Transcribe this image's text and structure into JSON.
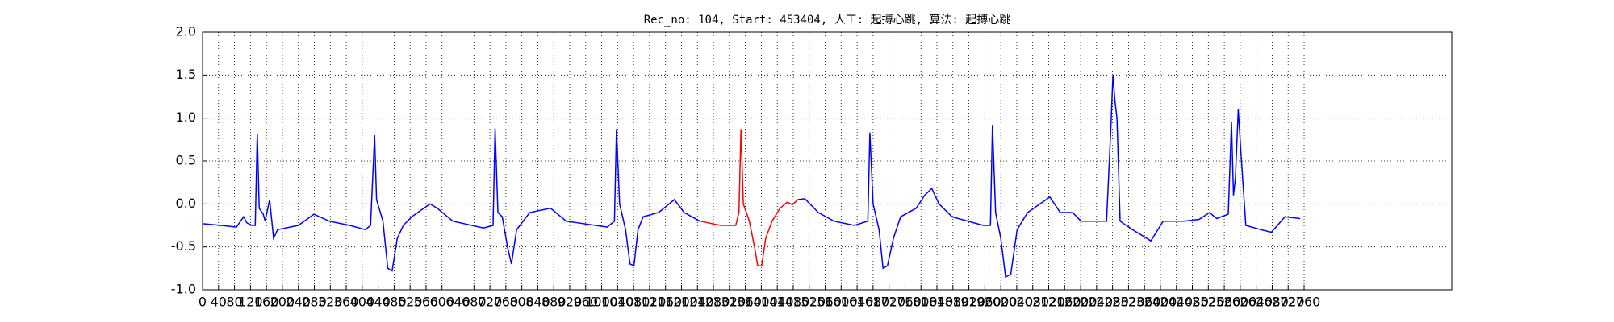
{
  "chart_data": {
    "type": "line",
    "title": "Rec_no: 104, Start: 453404, 人工: 起搏心跳, 算法: 起搏心跳",
    "x": [
      0,
      46,
      85,
      103,
      111,
      124,
      132,
      137,
      142,
      152,
      157,
      168,
      178,
      188,
      240,
      279,
      317,
      369,
      408,
      421,
      431,
      436,
      452,
      464,
      475,
      488,
      503,
      524,
      570,
      588,
      627,
      704,
      728,
      733,
      740,
      751,
      764,
      774,
      787,
      820,
      872,
      911,
      1014,
      1032,
      1037,
      1045,
      1060,
      1071,
      1081,
      1091,
      1104,
      1143,
      1182,
      1207,
      1246,
      1298,
      1336,
      1344,
      1349,
      1355,
      1370,
      1383,
      1391,
      1401,
      1411,
      1427,
      1447,
      1465,
      1478,
      1491,
      1509,
      1543,
      1582,
      1633,
      1667,
      1672,
      1680,
      1695,
      1705,
      1716,
      1731,
      1749,
      1788,
      1809,
      1827,
      1845,
      1878,
      1956,
      1974,
      1979,
      1987,
      2000,
      2012,
      2025,
      2041,
      2067,
      2123,
      2149,
      2180,
      2201,
      2265,
      2276,
      2281,
      2286,
      2291,
      2299,
      2330,
      2376,
      2407,
      2459,
      2497,
      2523,
      2541,
      2570,
      2578,
      2583,
      2588,
      2595,
      2603,
      2614,
      2652,
      2678,
      2712,
      2750
    ],
    "series": [
      {
        "color": "#0000ff",
        "values": [
          -0.23,
          -0.25,
          -0.27,
          -0.15,
          -0.22,
          -0.25,
          -0.25,
          0.82,
          -0.05,
          -0.12,
          -0.2,
          0.05,
          -0.4,
          -0.3,
          -0.25,
          -0.12,
          -0.2,
          -0.25,
          -0.3,
          -0.25,
          0.8,
          0.05,
          -0.2,
          -0.75,
          -0.78,
          -0.4,
          -0.25,
          -0.15,
          0.0,
          -0.05,
          -0.2,
          -0.28,
          -0.25,
          0.88,
          -0.1,
          -0.15,
          -0.5,
          -0.7,
          -0.3,
          -0.1,
          -0.05,
          -0.2,
          -0.27,
          -0.2,
          0.87,
          0.0,
          -0.3,
          -0.7,
          -0.72,
          -0.3,
          -0.15,
          -0.1,
          0.05,
          -0.1,
          -0.2,
          null,
          null,
          null,
          null,
          null,
          null,
          null,
          null,
          null,
          null,
          null,
          null,
          null,
          null,
          0.05,
          0.06,
          -0.1,
          -0.2,
          -0.25,
          -0.2,
          0.83,
          0.0,
          -0.3,
          -0.75,
          -0.72,
          -0.4,
          -0.15,
          -0.05,
          0.1,
          0.18,
          0.0,
          -0.15,
          -0.25,
          -0.25,
          0.92,
          -0.1,
          -0.4,
          -0.85,
          -0.82,
          -0.3,
          -0.1,
          0.08,
          -0.1,
          -0.1,
          -0.2,
          -0.2,
          0.9,
          1.5,
          1.2,
          1.0,
          -0.2,
          -0.3,
          -0.43,
          -0.2,
          -0.2,
          -0.18,
          -0.1,
          -0.17,
          -0.12,
          0.95,
          0.1,
          0.3,
          1.1,
          0.5,
          -0.25,
          -0.3,
          -0.33,
          -0.15,
          -0.17
        ]
      },
      {
        "color": "#ff0000",
        "values": [
          null,
          null,
          null,
          null,
          null,
          null,
          null,
          null,
          null,
          null,
          null,
          null,
          null,
          null,
          null,
          null,
          null,
          null,
          null,
          null,
          null,
          null,
          null,
          null,
          null,
          null,
          null,
          null,
          null,
          null,
          null,
          null,
          null,
          null,
          null,
          null,
          null,
          null,
          null,
          null,
          null,
          null,
          null,
          null,
          null,
          null,
          null,
          null,
          null,
          null,
          null,
          null,
          null,
          null,
          -0.2,
          -0.25,
          -0.25,
          -0.1,
          0.87,
          0.0,
          -0.2,
          -0.5,
          -0.72,
          -0.72,
          -0.4,
          -0.2,
          -0.05,
          0.02,
          -0.01,
          0.05,
          null,
          null,
          null,
          null,
          null,
          null,
          null,
          null,
          null,
          null,
          null,
          null,
          null,
          null,
          null,
          null,
          null,
          null,
          null,
          null,
          null,
          null,
          null,
          null,
          null,
          null,
          null,
          null,
          null,
          null,
          null,
          null,
          null,
          null,
          null,
          null,
          null,
          null,
          null,
          null,
          null,
          null,
          null,
          null,
          null,
          null,
          null,
          null,
          null,
          null,
          null,
          null,
          null,
          null
        ]
      }
    ],
    "xlim": [
      0,
      3130
    ],
    "xticks": [
      0,
      40,
      80,
      120,
      160,
      200,
      240,
      280,
      320,
      360,
      400,
      440,
      480,
      520,
      560,
      600,
      640,
      680,
      720,
      760,
      800,
      840,
      880,
      920,
      960,
      1000,
      1040,
      1080,
      1120,
      1160,
      1200,
      1240,
      1280,
      1320,
      1360,
      1400,
      1440,
      1480,
      1520,
      1560,
      1600,
      1640,
      1680,
      1720,
      1760,
      1800,
      1840,
      1880,
      1920,
      1960,
      2000,
      2040,
      2080,
      2120,
      2160,
      2200,
      2240,
      2280,
      2320,
      2360,
      2400,
      2440,
      2480,
      2520,
      2560,
      2600,
      2640,
      2680,
      2720,
      2760
    ],
    "ylim": [
      -1,
      2
    ],
    "yticks": [
      {
        "value": -1,
        "label": "-1.0"
      },
      -0.5,
      {
        "value": 0,
        "label": "0.0"
      },
      0.5,
      {
        "value": 1,
        "label": "1.0"
      },
      1.5,
      {
        "value": 2,
        "label": "2.0"
      }
    ],
    "grid": true
  }
}
